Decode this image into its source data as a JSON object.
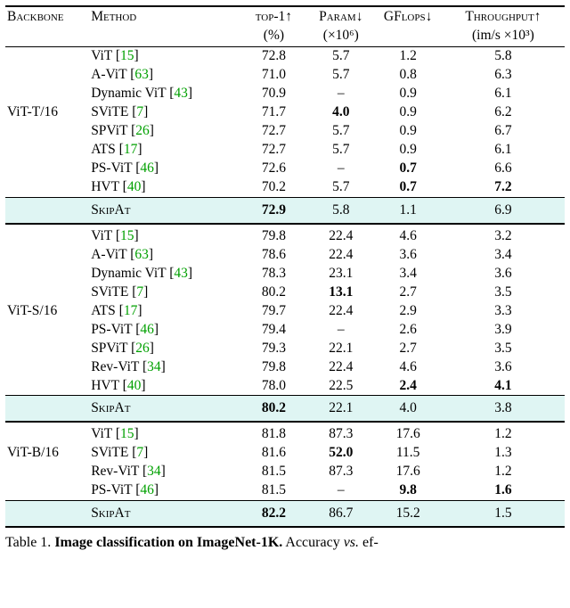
{
  "header": {
    "backbone": "Backbone",
    "method": "Method",
    "top1": "top-1↑",
    "top1_unit": "(%)",
    "param": "Param↓",
    "param_unit": "(×10⁶)",
    "gflops": "GFlops↓",
    "throughput": "Throughput↑",
    "throughput_unit": "(im/s ×10³)"
  },
  "groups": [
    {
      "backbone": "ViT-T/16",
      "rows": [
        {
          "method": "ViT",
          "cite": "15",
          "top1": "72.8",
          "param": "5.7",
          "gflops": "1.2",
          "thr": "5.8"
        },
        {
          "method": "A-ViT",
          "cite": "63",
          "top1": "71.0",
          "param": "5.7",
          "gflops": "0.8",
          "thr": "6.3"
        },
        {
          "method": "Dynamic ViT",
          "cite": "43",
          "top1": "70.9",
          "param": "–",
          "gflops": "0.9",
          "thr": "6.1"
        },
        {
          "method": "SViTE",
          "cite": "7",
          "top1": "71.7",
          "param": "4.0",
          "param_bold": true,
          "gflops": "0.9",
          "thr": "6.2"
        },
        {
          "method": "SPViT",
          "cite": "26",
          "top1": "72.7",
          "param": "5.7",
          "gflops": "0.9",
          "thr": "6.7"
        },
        {
          "method": "ATS",
          "cite": "17",
          "top1": "72.7",
          "param": "5.7",
          "gflops": "0.9",
          "thr": "6.1"
        },
        {
          "method": "PS-ViT",
          "cite": "46",
          "top1": "72.6",
          "param": "–",
          "gflops": "0.7",
          "gflops_bold": true,
          "thr": "6.6"
        },
        {
          "method": "HVT",
          "cite": "40",
          "top1": "70.2",
          "param": "5.7",
          "gflops": "0.7",
          "gflops_bold": true,
          "thr": "7.2",
          "thr_bold": true
        }
      ],
      "skipat": {
        "method": "SkipAt",
        "top1": "72.9",
        "top1_bold": true,
        "param": "5.8",
        "gflops": "1.1",
        "thr": "6.9"
      }
    },
    {
      "backbone": "ViT-S/16",
      "rows": [
        {
          "method": "ViT",
          "cite": "15",
          "top1": "79.8",
          "param": "22.4",
          "gflops": "4.6",
          "thr": "3.2"
        },
        {
          "method": "A-ViT",
          "cite": "63",
          "top1": "78.6",
          "param": "22.4",
          "gflops": "3.6",
          "thr": "3.4"
        },
        {
          "method": "Dynamic ViT",
          "cite": "43",
          "top1": "78.3",
          "param": "23.1",
          "gflops": "3.4",
          "thr": "3.6"
        },
        {
          "method": "SViTE",
          "cite": "7",
          "top1": "80.2",
          "param": "13.1",
          "param_bold": true,
          "gflops": "2.7",
          "thr": "3.5"
        },
        {
          "method": "ATS",
          "cite": "17",
          "top1": "79.7",
          "param": "22.4",
          "gflops": "2.9",
          "thr": "3.3"
        },
        {
          "method": "PS-ViT",
          "cite": "46",
          "top1": "79.4",
          "param": "–",
          "gflops": "2.6",
          "thr": "3.9"
        },
        {
          "method": "SPViT",
          "cite": "26",
          "top1": "79.3",
          "param": "22.1",
          "gflops": "2.7",
          "thr": "3.5"
        },
        {
          "method": "Rev-ViT",
          "cite": "34",
          "top1": "79.8",
          "param": "22.4",
          "gflops": "4.6",
          "thr": "3.6"
        },
        {
          "method": "HVT",
          "cite": "40",
          "top1": "78.0",
          "param": "22.5",
          "gflops": "2.4",
          "gflops_bold": true,
          "thr": "4.1",
          "thr_bold": true
        }
      ],
      "skipat": {
        "method": "SkipAt",
        "top1": "80.2",
        "top1_bold": true,
        "param": "22.1",
        "gflops": "4.0",
        "thr": "3.8"
      }
    },
    {
      "backbone": "ViT-B/16",
      "rows": [
        {
          "method": "ViT",
          "cite": "15",
          "top1": "81.8",
          "param": "87.3",
          "gflops": "17.6",
          "thr": "1.2"
        },
        {
          "method": "SViTE",
          "cite": "7",
          "top1": "81.6",
          "param": "52.0",
          "param_bold": true,
          "gflops": "11.5",
          "thr": "1.3"
        },
        {
          "method": "Rev-ViT",
          "cite": "34",
          "top1": "81.5",
          "param": "87.3",
          "gflops": "17.6",
          "thr": "1.2"
        },
        {
          "method": "PS-ViT",
          "cite": "46",
          "top1": "81.5",
          "param": "–",
          "gflops": "9.8",
          "gflops_bold": true,
          "thr": "1.6",
          "thr_bold": true
        }
      ],
      "skipat": {
        "method": "SkipAt",
        "top1": "82.2",
        "top1_bold": true,
        "param": "86.7",
        "gflops": "15.2",
        "thr": "1.5"
      }
    }
  ],
  "caption_prefix": "Table 1. ",
  "caption_bold": "Image classification on ImageNet-1K.",
  "caption_tail": " Accuracy ",
  "caption_vs": "vs.",
  "caption_end": " ef-"
}
